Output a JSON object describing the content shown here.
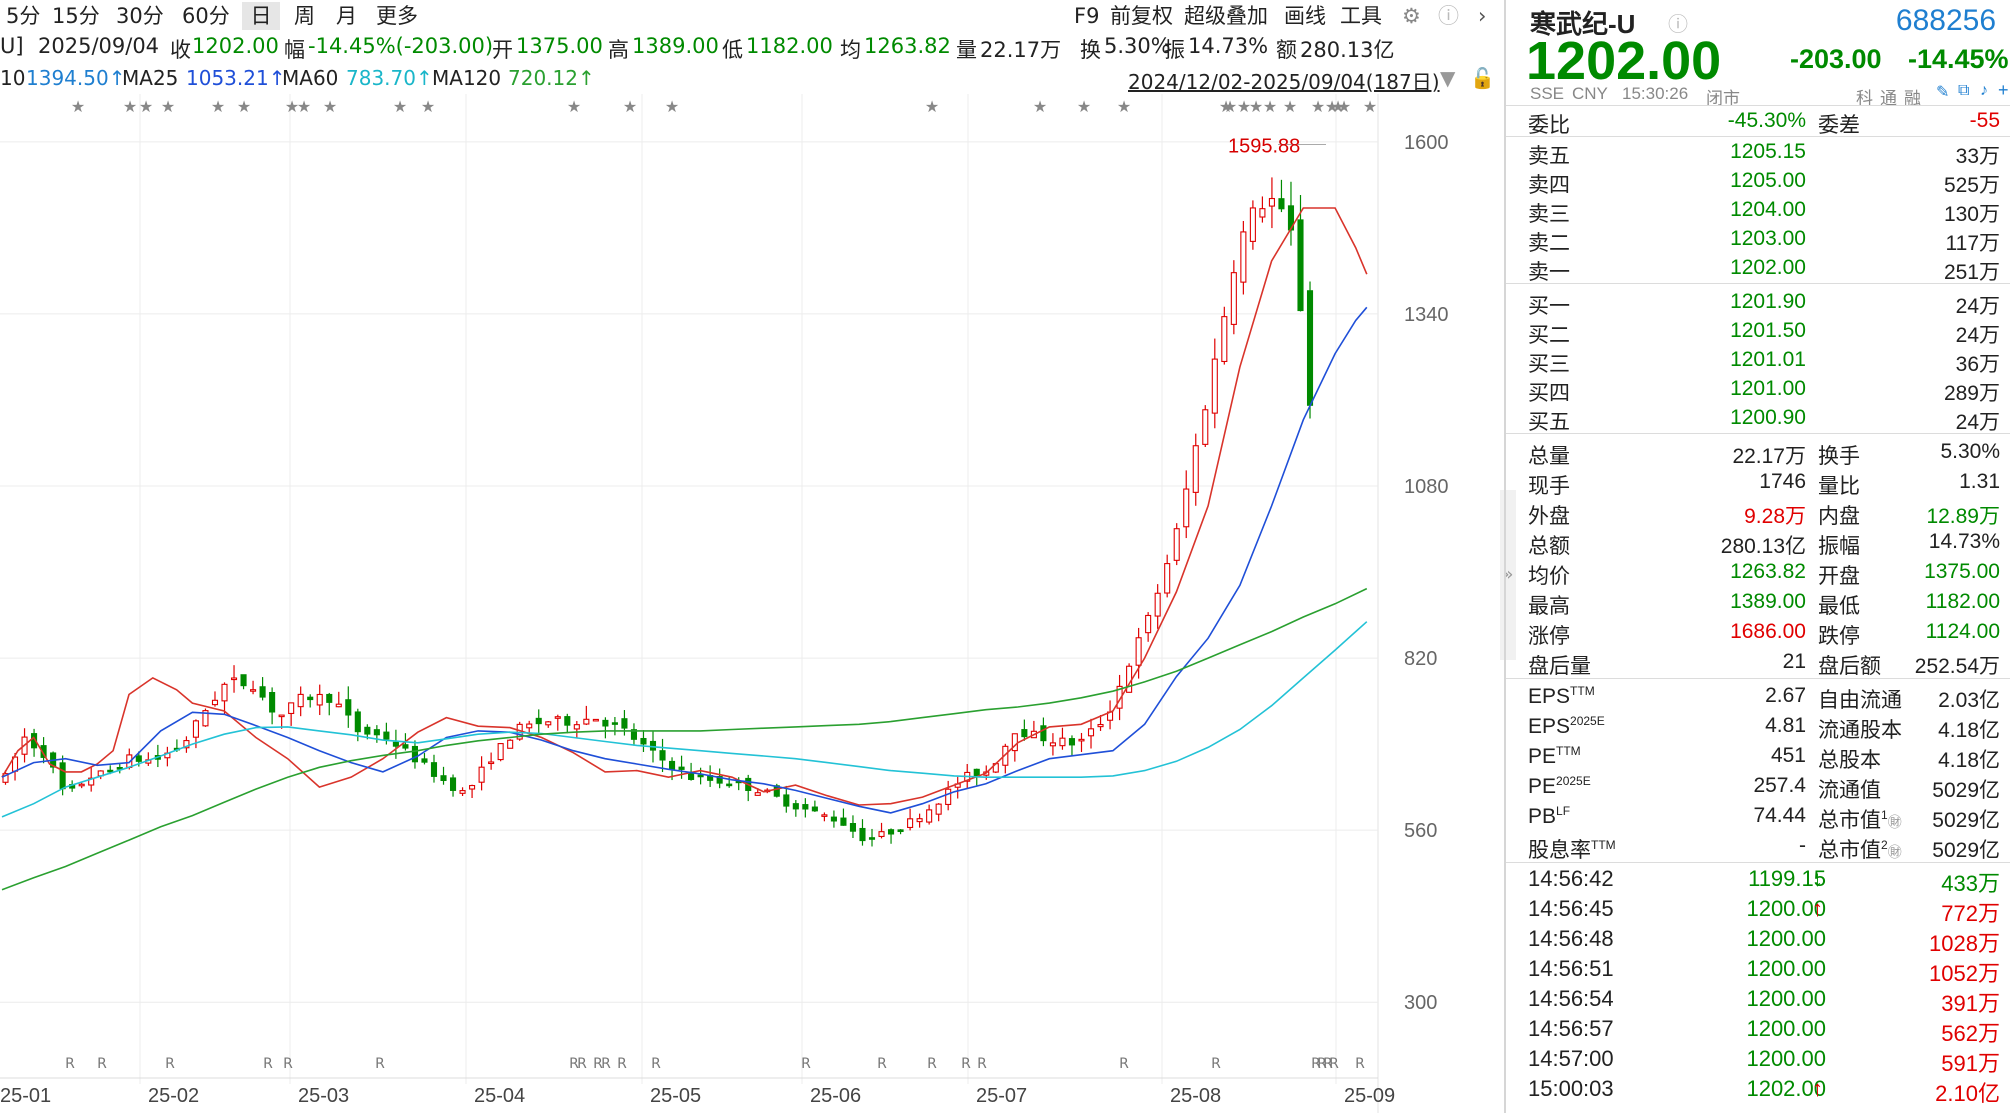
{
  "toolbar": {
    "periods": [
      "5分",
      "15分",
      "30分",
      "60分",
      "日",
      "周",
      "月",
      "更多"
    ],
    "active_period": "日",
    "tools": [
      "F9",
      "前复权",
      "超级叠加",
      "画线",
      "工具"
    ]
  },
  "info": {
    "prefix": "U]",
    "date": "2025/09/04",
    "close_label": "收",
    "close_value": "1202.00",
    "change_label": "幅",
    "change_value": "-14.45%(-203.00)",
    "open_label": "开",
    "open_value": "1375.00",
    "high_label": "高",
    "high_value": "1389.00",
    "low_label": "低",
    "low_value": "1182.00",
    "avg_label": "均",
    "avg_value": "1263.82",
    "vol_label": "量",
    "vol_value": "22.17万",
    "turnover_label": "换",
    "turnover_value": "5.30%",
    "amp_label": "振",
    "amp_value": "14.73%",
    "amount_label": "额",
    "amount_value": "280.13亿"
  },
  "ma": {
    "ma10_label": "10",
    "ma10_value": "1394.50↑",
    "ma25_label": "MA25",
    "ma25_value": "1053.21↑",
    "ma60_label": "MA60",
    "ma60_value": "783.70↑",
    "ma120_label": "MA120",
    "ma120_value": "720.12↑",
    "range": "2024/12/02-2025/09/04(187日)"
  },
  "colors": {
    "up": "#e00000",
    "down": "#008a00",
    "ma10": "#d9342b",
    "ma25": "#1f4fd8",
    "ma60": "#23c2d6",
    "ma120": "#2aa030"
  },
  "chart_data": {
    "type": "candlestick",
    "y_ticks": [
      1600,
      1340,
      1080,
      820,
      560,
      300
    ],
    "x_labels": [
      "25-01",
      "25-02",
      "25-03",
      "25-04",
      "25-05",
      "25-06",
      "25-07",
      "25-08",
      "25-09"
    ],
    "ylim": [
      255,
      1630
    ],
    "peak_label": "1595.88",
    "last": {
      "open": 1375,
      "high": 1389,
      "low": 1182,
      "close": 1202
    },
    "ma_series": {
      "MA10": [
        [
          0,
          640
        ],
        [
          10,
          680
        ],
        [
          20,
          700
        ],
        [
          30,
          660
        ],
        [
          40,
          648
        ],
        [
          50,
          648
        ],
        [
          60,
          660
        ],
        [
          70,
          680
        ],
        [
          80,
          765
        ],
        [
          95,
          790
        ],
        [
          110,
          772
        ],
        [
          120,
          752
        ],
        [
          140,
          740
        ],
        [
          160,
          700
        ],
        [
          180,
          668
        ],
        [
          200,
          625
        ],
        [
          220,
          640
        ],
        [
          240,
          668
        ],
        [
          262,
          708
        ],
        [
          280,
          730
        ],
        [
          300,
          717
        ],
        [
          320,
          715
        ],
        [
          340,
          700
        ],
        [
          360,
          677
        ],
        [
          380,
          648
        ],
        [
          400,
          650
        ],
        [
          420,
          640
        ],
        [
          440,
          650
        ],
        [
          460,
          640
        ],
        [
          480,
          618
        ],
        [
          500,
          628
        ],
        [
          520,
          612
        ],
        [
          540,
          598
        ],
        [
          560,
          600
        ],
        [
          580,
          610
        ],
        [
          600,
          628
        ],
        [
          620,
          646
        ],
        [
          640,
          692
        ],
        [
          660,
          716
        ],
        [
          680,
          720
        ],
        [
          700,
          740
        ],
        [
          720,
          820
        ],
        [
          740,
          920
        ],
        [
          760,
          1050
        ],
        [
          780,
          1260
        ],
        [
          800,
          1420
        ],
        [
          820,
          1500
        ],
        [
          840,
          1500
        ],
        [
          853,
          1440
        ],
        [
          860,
          1400
        ]
      ],
      "MA25": [
        [
          0,
          640
        ],
        [
          20,
          662
        ],
        [
          40,
          668
        ],
        [
          60,
          658
        ],
        [
          80,
          662
        ],
        [
          100,
          710
        ],
        [
          120,
          738
        ],
        [
          140,
          735
        ],
        [
          160,
          718
        ],
        [
          180,
          700
        ],
        [
          200,
          680
        ],
        [
          220,
          662
        ],
        [
          240,
          648
        ],
        [
          262,
          672
        ],
        [
          280,
          700
        ],
        [
          300,
          710
        ],
        [
          320,
          708
        ],
        [
          340,
          696
        ],
        [
          360,
          680
        ],
        [
          380,
          668
        ],
        [
          400,
          660
        ],
        [
          420,
          652
        ],
        [
          440,
          645
        ],
        [
          460,
          636
        ],
        [
          480,
          630
        ],
        [
          500,
          620
        ],
        [
          520,
          608
        ],
        [
          540,
          596
        ],
        [
          560,
          586
        ],
        [
          580,
          600
        ],
        [
          600,
          618
        ],
        [
          620,
          630
        ],
        [
          640,
          650
        ],
        [
          660,
          668
        ],
        [
          680,
          674
        ],
        [
          700,
          680
        ],
        [
          720,
          720
        ],
        [
          740,
          792
        ],
        [
          760,
          850
        ],
        [
          780,
          930
        ],
        [
          800,
          1050
        ],
        [
          820,
          1180
        ],
        [
          840,
          1280
        ],
        [
          853,
          1330
        ],
        [
          860,
          1350
        ]
      ],
      "MA60": [
        [
          0,
          580
        ],
        [
          20,
          600
        ],
        [
          40,
          625
        ],
        [
          60,
          640
        ],
        [
          80,
          655
        ],
        [
          100,
          672
        ],
        [
          120,
          690
        ],
        [
          140,
          705
        ],
        [
          160,
          715
        ],
        [
          180,
          716
        ],
        [
          200,
          710
        ],
        [
          220,
          704
        ],
        [
          240,
          696
        ],
        [
          262,
          692
        ],
        [
          280,
          698
        ],
        [
          300,
          705
        ],
        [
          320,
          708
        ],
        [
          340,
          706
        ],
        [
          360,
          700
        ],
        [
          380,
          694
        ],
        [
          400,
          688
        ],
        [
          420,
          684
        ],
        [
          440,
          680
        ],
        [
          460,
          676
        ],
        [
          480,
          672
        ],
        [
          500,
          668
        ],
        [
          520,
          662
        ],
        [
          540,
          656
        ],
        [
          560,
          650
        ],
        [
          580,
          646
        ],
        [
          600,
          642
        ],
        [
          620,
          640
        ],
        [
          640,
          640
        ],
        [
          660,
          640
        ],
        [
          680,
          640
        ],
        [
          700,
          642
        ],
        [
          720,
          650
        ],
        [
          740,
          664
        ],
        [
          760,
          685
        ],
        [
          780,
          712
        ],
        [
          800,
          748
        ],
        [
          820,
          790
        ],
        [
          840,
          832
        ],
        [
          853,
          860
        ],
        [
          860,
          875
        ]
      ],
      "MA120": [
        [
          0,
          470
        ],
        [
          20,
          488
        ],
        [
          40,
          505
        ],
        [
          60,
          525
        ],
        [
          80,
          545
        ],
        [
          100,
          565
        ],
        [
          120,
          582
        ],
        [
          140,
          602
        ],
        [
          160,
          622
        ],
        [
          180,
          640
        ],
        [
          200,
          655
        ],
        [
          220,
          665
        ],
        [
          240,
          673
        ],
        [
          262,
          680
        ],
        [
          280,
          688
        ],
        [
          300,
          695
        ],
        [
          320,
          700
        ],
        [
          340,
          705
        ],
        [
          360,
          708
        ],
        [
          380,
          710
        ],
        [
          400,
          710
        ],
        [
          420,
          710
        ],
        [
          440,
          710
        ],
        [
          460,
          712
        ],
        [
          480,
          714
        ],
        [
          500,
          716
        ],
        [
          520,
          718
        ],
        [
          540,
          720
        ],
        [
          560,
          724
        ],
        [
          580,
          730
        ],
        [
          600,
          736
        ],
        [
          620,
          742
        ],
        [
          640,
          746
        ],
        [
          660,
          752
        ],
        [
          680,
          760
        ],
        [
          700,
          770
        ],
        [
          720,
          784
        ],
        [
          740,
          800
        ],
        [
          760,
          820
        ],
        [
          780,
          840
        ],
        [
          800,
          860
        ],
        [
          820,
          882
        ],
        [
          840,
          902
        ],
        [
          860,
          925
        ]
      ]
    }
  },
  "quote": {
    "name": "寒武纪-U",
    "code": "688256",
    "price": "1202.00",
    "change": "-203.00",
    "change_pct": "-14.45%",
    "exchange": "SSE",
    "currency": "CNY",
    "time": "15:30:26",
    "status": "闭市",
    "tags": [
      "科",
      "通",
      "融"
    ],
    "weibi_label": "委比",
    "weibi_value": "-45.30%",
    "weicha_label": "委差",
    "weicha_value": "-55"
  },
  "orderbook": {
    "asks": [
      {
        "label": "卖五",
        "price": "1205.15",
        "vol": "33万"
      },
      {
        "label": "卖四",
        "price": "1205.00",
        "vol": "525万"
      },
      {
        "label": "卖三",
        "price": "1204.00",
        "vol": "130万"
      },
      {
        "label": "卖二",
        "price": "1203.00",
        "vol": "117万"
      },
      {
        "label": "卖一",
        "price": "1202.00",
        "vol": "251万"
      }
    ],
    "bids": [
      {
        "label": "买一",
        "price": "1201.90",
        "vol": "24万"
      },
      {
        "label": "买二",
        "price": "1201.50",
        "vol": "24万"
      },
      {
        "label": "买三",
        "price": "1201.01",
        "vol": "36万"
      },
      {
        "label": "买四",
        "price": "1201.00",
        "vol": "289万"
      },
      {
        "label": "买五",
        "price": "1200.90",
        "vol": "24万"
      }
    ]
  },
  "stats": [
    {
      "l1": "总量",
      "v1": "22.17万",
      "l2": "换手",
      "v2": "5.30%"
    },
    {
      "l1": "现手",
      "v1": "1746",
      "l2": "量比",
      "v2": "1.31"
    },
    {
      "l1": "外盘",
      "v1": "9.28万",
      "l2": "内盘",
      "v2": "12.89万"
    },
    {
      "l1": "总额",
      "v1": "280.13亿",
      "l2": "振幅",
      "v2": "14.73%"
    },
    {
      "l1": "均价",
      "v1": "1263.82",
      "l2": "开盘",
      "v2": "1375.00"
    },
    {
      "l1": "最高",
      "v1": "1389.00",
      "l2": "最低",
      "v2": "1182.00"
    },
    {
      "l1": "涨停",
      "v1": "1686.00",
      "l2": "跌停",
      "v2": "1124.00"
    },
    {
      "l1": "盘后量",
      "v1": "21",
      "l2": "盘后额",
      "v2": "252.54万"
    }
  ],
  "fundamentals": [
    {
      "l1": "EPS",
      "s1": "TTM",
      "v1": "2.67",
      "l2": "自由流通",
      "s2": "",
      "v2": "2.03亿"
    },
    {
      "l1": "EPS",
      "s1": "2025E",
      "v1": "4.81",
      "l2": "流通股本",
      "s2": "",
      "v2": "4.18亿"
    },
    {
      "l1": "PE",
      "s1": "TTM",
      "v1": "451",
      "l2": "总股本",
      "s2": "",
      "v2": "4.18亿"
    },
    {
      "l1": "PE",
      "s1": "2025E",
      "v1": "257.4",
      "l2": "流通值",
      "s2": "",
      "v2": "5029亿"
    },
    {
      "l1": "PB",
      "s1": "LF",
      "v1": "74.44",
      "l2": "总市值",
      "s2": "1",
      "v2": "5029亿"
    },
    {
      "l1": "股息率",
      "s1": "TTM",
      "v1": "-",
      "l2": "总市值",
      "s2": "2",
      "v2": "5029亿"
    }
  ],
  "ticks": [
    {
      "time": "14:56:42",
      "price": "1199.15",
      "dir": "down",
      "vol": "433万"
    },
    {
      "time": "14:56:45",
      "price": "1200.00",
      "dir": "up",
      "vol": "772万"
    },
    {
      "time": "14:56:48",
      "price": "1200.00",
      "dir": "",
      "vol": "1028万"
    },
    {
      "time": "14:56:51",
      "price": "1200.00",
      "dir": "",
      "vol": "1052万"
    },
    {
      "time": "14:56:54",
      "price": "1200.00",
      "dir": "",
      "vol": "391万"
    },
    {
      "time": "14:56:57",
      "price": "1200.00",
      "dir": "",
      "vol": "562万"
    },
    {
      "time": "14:57:00",
      "price": "1200.00",
      "dir": "",
      "vol": "591万"
    },
    {
      "time": "15:00:03",
      "price": "1202.00",
      "dir": "up",
      "vol": "2.10亿"
    }
  ]
}
